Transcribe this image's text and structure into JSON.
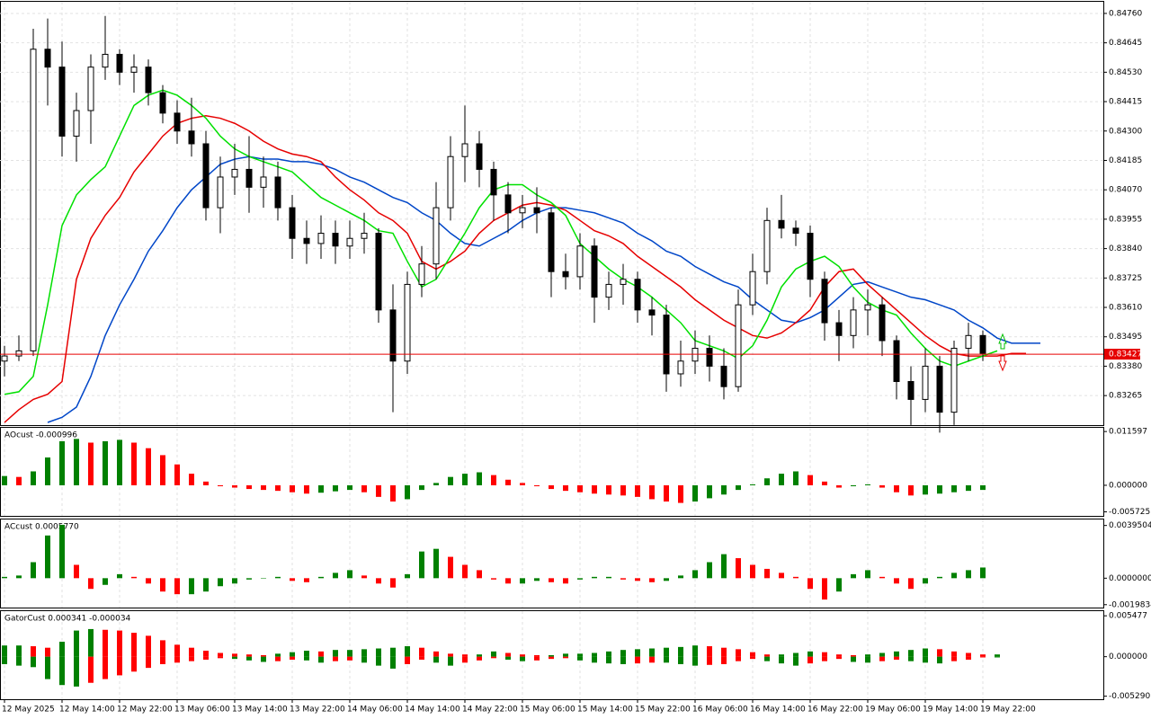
{
  "chart_data": [
    {
      "type": "candlestick",
      "categories": [
        "12 May 2025",
        null,
        null,
        null,
        "12 May 14:00",
        null,
        null,
        null,
        "12 May 22:00",
        null,
        null,
        null,
        "13 May 06:00",
        null,
        null,
        null,
        "13 May 14:00",
        null,
        null,
        null,
        "13 May 22:00",
        null,
        null,
        null,
        "14 May 06:00",
        null,
        null,
        null,
        "14 May 14:00",
        null,
        null,
        null,
        "14 May 22:00",
        null,
        null,
        null,
        "15 May 06:00",
        null,
        null,
        null,
        "15 May 14:00",
        null,
        null,
        null,
        "15 May 22:00",
        null,
        null,
        null,
        "16 May 06:00",
        null,
        null,
        null,
        "16 May 14:00",
        null,
        null,
        null,
        "16 May 22:00",
        null,
        null,
        null,
        "19 May 06:00",
        null,
        null,
        null,
        "19 May 14:00",
        null,
        null,
        null,
        "19 May 22:00",
        null,
        null,
        null,
        null,
        null
      ],
      "open": [
        0.834,
        0.8342,
        0.8344,
        0.8462,
        0.8455,
        0.8428,
        0.8438,
        0.8455,
        0.846,
        0.8453,
        0.8455,
        0.8445,
        0.8437,
        0.843,
        0.8425,
        0.84,
        0.8412,
        0.8415,
        0.8408,
        0.8412,
        0.84,
        0.8388,
        0.8386,
        0.839,
        0.8385,
        0.8388,
        0.839,
        0.836,
        0.834,
        0.837,
        0.8378,
        0.84,
        0.842,
        0.8425,
        0.8415,
        0.8405,
        0.8398,
        0.84,
        0.8398,
        0.8375,
        0.8373,
        0.8385,
        0.8365,
        0.837,
        0.8372,
        0.836,
        0.8358,
        0.8335,
        0.834,
        0.8345,
        0.8338,
        0.833,
        0.8362,
        0.8375,
        0.8395,
        0.8392,
        0.839,
        0.8372,
        0.8355,
        0.835,
        0.836,
        0.8362,
        0.8348,
        0.8332,
        0.8325,
        0.8338,
        0.832,
        0.8345,
        0.835,
        null,
        null,
        null,
        null,
        null
      ],
      "high": [
        0.8346,
        0.835,
        0.847,
        0.8474,
        0.8465,
        0.8445,
        0.846,
        0.8475,
        0.8462,
        0.846,
        0.8458,
        0.8448,
        0.8442,
        0.8443,
        0.843,
        0.842,
        0.8425,
        0.8428,
        0.842,
        0.8418,
        0.8405,
        0.8395,
        0.8397,
        0.8395,
        0.8395,
        0.8398,
        0.8392,
        0.837,
        0.8375,
        0.8385,
        0.841,
        0.8428,
        0.844,
        0.843,
        0.8418,
        0.841,
        0.8405,
        0.8408,
        0.84,
        0.8382,
        0.839,
        0.8388,
        0.8375,
        0.8378,
        0.8375,
        0.8365,
        0.8362,
        0.8348,
        0.8352,
        0.835,
        0.8345,
        0.8368,
        0.8382,
        0.84,
        0.8405,
        0.8395,
        0.8393,
        0.8375,
        0.836,
        0.8365,
        0.8368,
        0.8365,
        0.835,
        0.8338,
        0.8345,
        0.8342,
        0.8348,
        0.8355,
        0.8352,
        null,
        null,
        null,
        null,
        null
      ],
      "low": [
        0.8334,
        0.834,
        0.8342,
        0.844,
        0.842,
        0.8418,
        0.8425,
        0.845,
        0.8448,
        0.8445,
        0.844,
        0.8433,
        0.8425,
        0.842,
        0.8395,
        0.839,
        0.8405,
        0.8398,
        0.84,
        0.8395,
        0.838,
        0.8378,
        0.838,
        0.8378,
        0.838,
        0.8382,
        0.8355,
        0.832,
        0.8335,
        0.8365,
        0.8372,
        0.8395,
        0.841,
        0.8408,
        0.8395,
        0.839,
        0.8392,
        0.839,
        0.8365,
        0.8368,
        0.8368,
        0.8355,
        0.836,
        0.8362,
        0.8355,
        0.835,
        0.8328,
        0.833,
        0.8335,
        0.8332,
        0.8325,
        0.8328,
        0.8358,
        0.837,
        0.8388,
        0.8385,
        0.8365,
        0.8348,
        0.834,
        0.8345,
        0.835,
        0.8342,
        0.8325,
        0.8315,
        0.832,
        0.8312,
        0.8315,
        0.834,
        0.834,
        null,
        null,
        null,
        null,
        null
      ],
      "close": [
        0.8342,
        0.8344,
        0.8462,
        0.8455,
        0.8428,
        0.8438,
        0.8455,
        0.846,
        0.8453,
        0.8455,
        0.8445,
        0.8437,
        0.843,
        0.8425,
        0.84,
        0.8412,
        0.8415,
        0.8408,
        0.8412,
        0.84,
        0.8388,
        0.8386,
        0.839,
        0.8385,
        0.8388,
        0.839,
        0.836,
        0.834,
        0.837,
        0.8378,
        0.84,
        0.842,
        0.8425,
        0.8415,
        0.8405,
        0.8398,
        0.84,
        0.8398,
        0.8375,
        0.8373,
        0.8385,
        0.8365,
        0.837,
        0.8372,
        0.836,
        0.8358,
        0.8335,
        0.834,
        0.8345,
        0.8338,
        0.833,
        0.8362,
        0.8375,
        0.8395,
        0.8392,
        0.839,
        0.8372,
        0.8355,
        0.835,
        0.836,
        0.8362,
        0.8348,
        0.8332,
        0.8325,
        0.8338,
        0.832,
        0.8345,
        0.835,
        0.8343,
        null,
        null,
        null,
        null,
        null
      ],
      "bull_color": "#ffffff",
      "bear_color": "#000000",
      "series": [
        {
          "color": "#0046c8",
          "values": [
            null,
            null,
            null,
            0.8316,
            0.8318,
            0.8322,
            0.8334,
            0.835,
            0.8362,
            0.8372,
            0.8383,
            0.8391,
            0.84,
            0.8407,
            0.8412,
            0.8417,
            0.8419,
            0.842,
            0.8419,
            0.8419,
            0.8418,
            0.8418,
            0.8417,
            0.8415,
            0.8412,
            0.841,
            0.8407,
            0.8404,
            0.8402,
            0.8398,
            0.8395,
            0.839,
            0.8386,
            0.8385,
            0.8388,
            0.8391,
            0.8395,
            0.8398,
            0.84,
            0.84,
            0.8399,
            0.8398,
            0.8396,
            0.8394,
            0.839,
            0.8387,
            0.8383,
            0.8381,
            0.8377,
            0.8374,
            0.8371,
            0.8369,
            0.8364,
            0.836,
            0.8356,
            0.8355,
            0.8357,
            0.836,
            0.8365,
            0.837,
            0.8371,
            0.8369,
            0.8367,
            0.8365,
            0.8364,
            0.8362,
            0.836,
            0.8356,
            0.8353,
            0.8349,
            0.8347,
            0.8347,
            0.8347,
            null
          ]
        },
        {
          "color": "#e60000",
          "values": [
            0.8316,
            0.8321,
            0.8325,
            0.8327,
            0.8332,
            0.8372,
            0.8388,
            0.8397,
            0.8404,
            0.8414,
            0.8421,
            0.8428,
            0.8433,
            0.8435,
            0.8436,
            0.8435,
            0.8433,
            0.843,
            0.8426,
            0.8423,
            0.8421,
            0.842,
            0.8418,
            0.8412,
            0.8407,
            0.8403,
            0.8398,
            0.8395,
            0.839,
            0.8379,
            0.8376,
            0.8379,
            0.8383,
            0.839,
            0.8395,
            0.8398,
            0.8401,
            0.8402,
            0.8401,
            0.8399,
            0.8395,
            0.8391,
            0.8389,
            0.8386,
            0.8381,
            0.8377,
            0.8373,
            0.8369,
            0.8364,
            0.836,
            0.8356,
            0.8353,
            0.835,
            0.8349,
            0.8351,
            0.8355,
            0.836,
            0.8369,
            0.8375,
            0.8376,
            0.837,
            0.8365,
            0.836,
            0.8355,
            0.835,
            0.8346,
            0.8343,
            0.8342,
            0.8342,
            0.8342,
            0.8343,
            0.8343,
            null,
            null
          ]
        },
        {
          "color": "#00e000",
          "values": [
            0.8327,
            0.8328,
            0.8334,
            0.8362,
            0.8393,
            0.8405,
            0.8411,
            0.8416,
            0.8428,
            0.844,
            0.8444,
            0.8446,
            0.8444,
            0.844,
            0.8435,
            0.8428,
            0.8423,
            0.842,
            0.8418,
            0.8416,
            0.8414,
            0.8409,
            0.8404,
            0.8401,
            0.8398,
            0.8395,
            0.8391,
            0.839,
            0.8379,
            0.8369,
            0.8372,
            0.8381,
            0.839,
            0.84,
            0.8407,
            0.8409,
            0.8409,
            0.8405,
            0.8402,
            0.8397,
            0.8386,
            0.8381,
            0.8376,
            0.8372,
            0.8369,
            0.8365,
            0.836,
            0.8355,
            0.8348,
            0.8346,
            0.8344,
            0.8341,
            0.8346,
            0.8356,
            0.8369,
            0.8376,
            0.8379,
            0.8381,
            0.8377,
            0.8369,
            0.8363,
            0.836,
            0.8358,
            0.8351,
            0.8345,
            0.834,
            0.8338,
            0.834,
            0.8342,
            0.8344,
            null,
            null,
            null,
            null
          ]
        }
      ],
      "last_price": {
        "value": 0.83427,
        "label": "0.83427"
      },
      "last_price_color": "#e60000",
      "ylim": [
        0.831495,
        0.848055
      ],
      "yticks": [
        {
          "value": 0.8476,
          "label": "0.84760"
        },
        {
          "value": 0.84645,
          "label": "0.84645"
        },
        {
          "value": 0.8453,
          "label": "0.84530"
        },
        {
          "value": 0.84415,
          "label": "0.84415"
        },
        {
          "value": 0.843,
          "label": "0.84300"
        },
        {
          "value": 0.84185,
          "label": "0.84185"
        },
        {
          "value": 0.8407,
          "label": "0.84070"
        },
        {
          "value": 0.83955,
          "label": "0.83955"
        },
        {
          "value": 0.8384,
          "label": "0.83840"
        },
        {
          "value": 0.83725,
          "label": "0.83725"
        },
        {
          "value": 0.8361,
          "label": "0.83610"
        },
        {
          "value": 0.83495,
          "label": "0.83495"
        },
        {
          "value": 0.8338,
          "label": "0.83380"
        },
        {
          "value": 0.83265,
          "label": "0.83265"
        }
      ],
      "grid": true
    },
    {
      "type": "histogram",
      "title": "AOcust -0.000996",
      "up_color": "#008000",
      "down_color": "#ff0000",
      "values": [
        0.002,
        0.0018,
        0.003,
        0.006,
        0.0095,
        0.01,
        0.0092,
        0.0095,
        0.0098,
        0.0092,
        0.008,
        0.0065,
        0.0045,
        0.0025,
        0.0008,
        -0.0002,
        -0.0005,
        -0.0008,
        -0.001,
        -0.0012,
        -0.0015,
        -0.0018,
        -0.0016,
        -0.0013,
        -0.001,
        -0.0015,
        -0.0025,
        -0.0035,
        -0.003,
        -0.001,
        0.0005,
        0.0018,
        0.0025,
        0.0028,
        0.0022,
        0.0012,
        0.0005,
        -0.0002,
        -0.0008,
        -0.0012,
        -0.0015,
        -0.0018,
        -0.002,
        -0.0022,
        -0.0025,
        -0.003,
        -0.0035,
        -0.0038,
        -0.0035,
        -0.0028,
        -0.002,
        -0.001,
        0.0002,
        0.0015,
        0.0025,
        0.003,
        0.0022,
        0.0008,
        -0.0005,
        -0.0002,
        0.0002,
        -0.0005,
        -0.0015,
        -0.0022,
        -0.002,
        -0.0018,
        -0.0015,
        -0.0012,
        -0.001,
        null,
        null,
        null,
        null,
        null
      ],
      "ylim": [
        -0.0066,
        0.0124
      ],
      "yticks": [
        {
          "value": 0.011597,
          "label": "0.011597"
        },
        {
          "value": 0,
          "label": "0.000000"
        },
        {
          "value": -0.005725,
          "label": "-0.005725"
        }
      ]
    },
    {
      "type": "histogram",
      "title": "ACcust 0.0005770",
      "up_color": "#008000",
      "down_color": "#ff0000",
      "values": [
        0.0001,
        0.0002,
        0.0012,
        0.0032,
        0.004,
        0.001,
        -0.0008,
        -0.0005,
        0.0003,
        0.0001,
        -0.0004,
        -0.001,
        -0.0012,
        -0.0012,
        -0.001,
        -0.0006,
        -0.0004,
        -0.0001,
        0,
        0.0001,
        -0.0002,
        -0.0003,
        0.0001,
        0.0004,
        0.0006,
        0.0002,
        -0.0004,
        -0.0007,
        0.0003,
        0.002,
        0.0022,
        0.0016,
        0.001,
        0.0006,
        -0.0001,
        -0.0004,
        -0.0004,
        -0.0002,
        -0.0003,
        -0.0004,
        -0.0001,
        0.0001,
        0.0001,
        -0.0001,
        -0.0002,
        -0.0003,
        -0.0002,
        0.0002,
        0.0006,
        0.0012,
        0.0018,
        0.0015,
        0.001,
        0.0007,
        0.0004,
        0.0001,
        -0.0008,
        -0.0016,
        -0.001,
        0.0003,
        0.0006,
        0.0001,
        -0.0004,
        -0.0008,
        -0.0004,
        0.0001,
        0.0004,
        0.0006,
        0.0008,
        null,
        null,
        null,
        null,
        null
      ],
      "ylim": [
        -0.0022,
        0.0044
      ],
      "yticks": [
        {
          "value": 0.0039504,
          "label": "0.0039504"
        },
        {
          "value": 0,
          "label": "0.0000000"
        },
        {
          "value": -0.0019834,
          "label": "-0.0019834"
        }
      ]
    },
    {
      "type": "gator",
      "title": "GatorCust 0.000341 -0.000034",
      "up_color": "#008000",
      "down_color": "#ff0000",
      "upper": [
        0.0015,
        0.0015,
        0.0014,
        0.0012,
        0.002,
        0.0035,
        0.0037,
        0.0036,
        0.0035,
        0.0032,
        0.0028,
        0.0022,
        0.0016,
        0.0012,
        0.0008,
        0.0005,
        0.0004,
        0.0003,
        0.0002,
        0.0004,
        0.0006,
        0.0008,
        0.0007,
        0.0009,
        0.0009,
        0.001,
        0.0011,
        0.0012,
        0.0014,
        0.0012,
        0.0007,
        0.0004,
        0.0003,
        0.0003,
        0.0007,
        0.0005,
        0.0003,
        0.0002,
        0.0002,
        0.0004,
        0.0004,
        0.0005,
        0.0007,
        0.0009,
        0.001,
        0.0011,
        0.0012,
        0.0013,
        0.0015,
        0.0014,
        0.0012,
        0.001,
        0.0006,
        0.0003,
        0.0003,
        0.0005,
        0.0007,
        0.0006,
        0.0003,
        0.0002,
        0.0003,
        0.0005,
        0.0007,
        0.0009,
        0.0011,
        0.001,
        0.0007,
        0.0005,
        0.0003,
        0.0003,
        null,
        null,
        null,
        null
      ],
      "lower": [
        -0.001,
        -0.0012,
        -0.0014,
        -0.003,
        -0.0038,
        -0.004,
        -0.0035,
        -0.003,
        -0.0025,
        -0.002,
        -0.0015,
        -0.001,
        -0.0008,
        -0.0006,
        -0.0004,
        -0.0002,
        -0.0003,
        -0.0005,
        -0.0007,
        -0.0006,
        -0.0004,
        -0.0005,
        -0.0008,
        -0.0006,
        -0.0005,
        -0.0008,
        -0.0012,
        -0.0016,
        -0.001,
        -0.0004,
        -0.0008,
        -0.0012,
        -0.0008,
        -0.0005,
        -0.0002,
        -0.0004,
        -0.0006,
        -0.0005,
        -0.0003,
        -0.0002,
        -0.0005,
        -0.0008,
        -0.0009,
        -0.001,
        -0.0009,
        -0.0008,
        -0.0008,
        -0.001,
        -0.0012,
        -0.0011,
        -0.001,
        -0.0006,
        -0.0003,
        -0.0006,
        -0.0009,
        -0.0012,
        -0.0009,
        -0.0006,
        -0.0003,
        -0.0007,
        -0.0008,
        -0.0006,
        -0.0004,
        -0.0006,
        -0.0008,
        -0.0009,
        -0.0006,
        -0.0004,
        -0.0001,
        -0.0001,
        null,
        null,
        null,
        null
      ],
      "ylim": [
        -0.0057,
        0.0061
      ],
      "yticks": [
        {
          "value": 0.005477,
          "label": "0.005477"
        },
        {
          "value": 0,
          "label": "0.000000"
        },
        {
          "value": -0.00529,
          "label": "-0.005290"
        }
      ]
    }
  ]
}
